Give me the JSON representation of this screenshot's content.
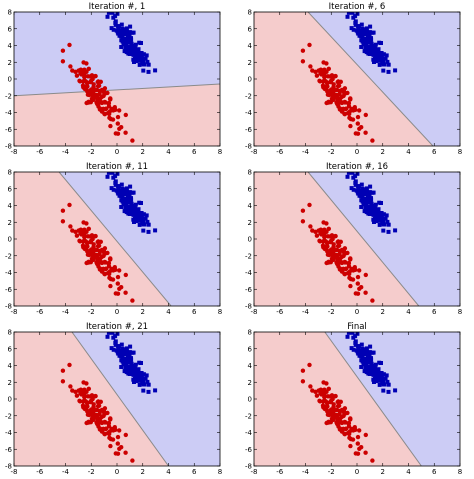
{
  "figure": {
    "palette": {
      "red_region": "#f5cccc",
      "blue_region": "#ccccf5",
      "red_point": "#cc0000",
      "blue_point": "#0000b4",
      "boundary": "#8a8a8a"
    },
    "x_ticks": [
      "-8",
      "-6",
      "-4",
      "-2",
      "0",
      "2",
      "4",
      "6",
      "8"
    ],
    "y_ticks": [
      "8",
      "6",
      "4",
      "2",
      "0",
      "-2",
      "-4",
      "-6",
      "-8"
    ]
  },
  "chart_data": [
    {
      "type": "scatter",
      "title": "Iteration #, 1",
      "xlim": [
        -8,
        8
      ],
      "ylim": [
        -8,
        8
      ],
      "grid": false,
      "decision_boundary": {
        "y_at_x_min": -2.0,
        "y_at_x_max": -0.6
      },
      "series": [
        {
          "class": "red",
          "marker": "circle"
        },
        {
          "class": "blue",
          "marker": "square"
        }
      ]
    },
    {
      "type": "scatter",
      "title": "Iteration #, 6",
      "xlim": [
        -8,
        8
      ],
      "ylim": [
        -8,
        8
      ],
      "grid": false,
      "decision_boundary": {
        "x_at_y_max": -3.8,
        "x_at_y_min": 5.9
      },
      "series": [
        {
          "class": "red",
          "marker": "circle"
        },
        {
          "class": "blue",
          "marker": "square"
        }
      ]
    },
    {
      "type": "scatter",
      "title": "Iteration #, 11",
      "xlim": [
        -8,
        8
      ],
      "ylim": [
        -8,
        8
      ],
      "grid": false,
      "decision_boundary": {
        "x_at_y_max": -4.5,
        "x_at_y_min": 4.2
      },
      "series": [
        {
          "class": "red",
          "marker": "circle"
        },
        {
          "class": "blue",
          "marker": "square"
        }
      ]
    },
    {
      "type": "scatter",
      "title": "Iteration #, 16",
      "xlim": [
        -8,
        8
      ],
      "ylim": [
        -8,
        8
      ],
      "grid": false,
      "decision_boundary": {
        "x_at_y_max": -3.8,
        "x_at_y_min": 4.8
      },
      "series": [
        {
          "class": "red",
          "marker": "circle"
        },
        {
          "class": "blue",
          "marker": "square"
        }
      ]
    },
    {
      "type": "scatter",
      "title": "Iteration #, 21",
      "xlim": [
        -8,
        8
      ],
      "ylim": [
        -8,
        8
      ],
      "grid": false,
      "decision_boundary": {
        "x_at_y_max": -3.5,
        "x_at_y_min": 4.0
      },
      "series": [
        {
          "class": "red",
          "marker": "circle"
        },
        {
          "class": "blue",
          "marker": "square"
        }
      ]
    },
    {
      "type": "scatter",
      "title": "Final",
      "xlim": [
        -8,
        8
      ],
      "ylim": [
        -8,
        8
      ],
      "grid": false,
      "decision_boundary": {
        "x_at_y_max": -2.5,
        "x_at_y_min": 5.0
      },
      "series": [
        {
          "class": "red",
          "marker": "circle"
        },
        {
          "class": "blue",
          "marker": "square"
        }
      ]
    }
  ]
}
